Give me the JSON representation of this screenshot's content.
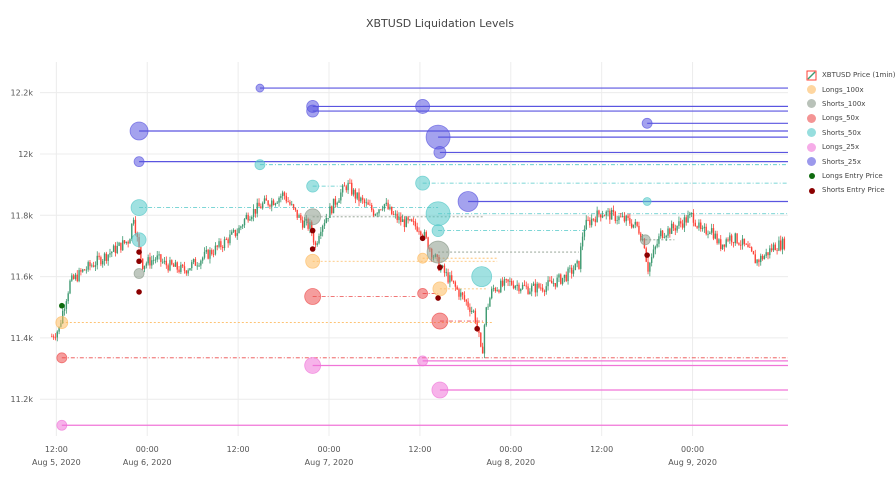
{
  "chart_data": {
    "type": "scatter",
    "title": "XBTUSD Liquidation Levels",
    "xlabel": "",
    "ylabel": "",
    "ylim": [
      11080,
      12300
    ],
    "x_range_hours": [
      -1.8,
      80.5
    ],
    "y_ticks": [
      {
        "value": 11200,
        "label": "11.2k"
      },
      {
        "value": 11400,
        "label": "11.4k"
      },
      {
        "value": 11600,
        "label": "11.6k"
      },
      {
        "value": 11800,
        "label": "11.8k"
      },
      {
        "value": 12000,
        "label": "12k"
      },
      {
        "value": 12200,
        "label": "12.2k"
      }
    ],
    "x_ticks": [
      {
        "hour": 0,
        "time": "12:00",
        "date": "Aug 5, 2020"
      },
      {
        "hour": 10,
        "time": "00:00",
        "date": "Aug 6, 2020"
      },
      {
        "hour": 20,
        "time": "12:00",
        "date": ""
      },
      {
        "hour": 30,
        "time": "00:00",
        "date": "Aug 7, 2020"
      },
      {
        "hour": 40,
        "time": "12:00",
        "date": ""
      },
      {
        "hour": 50,
        "time": "00:00",
        "date": "Aug 8, 2020"
      },
      {
        "hour": 60,
        "time": "12:00",
        "date": ""
      },
      {
        "hour": 70,
        "time": "00:00",
        "date": "Aug 9, 2020"
      }
    ],
    "price_anchors": [
      [
        -0.5,
        11405
      ],
      [
        0.3,
        11430
      ],
      [
        0.8,
        11500
      ],
      [
        1.5,
        11580
      ],
      [
        3,
        11620
      ],
      [
        5,
        11660
      ],
      [
        7,
        11700
      ],
      [
        8,
        11720
      ],
      [
        8.5,
        11800
      ],
      [
        9,
        11700
      ],
      [
        9.5,
        11640
      ],
      [
        11,
        11660
      ],
      [
        12,
        11640
      ],
      [
        14,
        11620
      ],
      [
        16,
        11660
      ],
      [
        18,
        11700
      ],
      [
        20,
        11750
      ],
      [
        21,
        11800
      ],
      [
        22,
        11820
      ],
      [
        23,
        11840
      ],
      [
        24,
        11850
      ],
      [
        25,
        11870
      ],
      [
        26,
        11820
      ],
      [
        27,
        11780
      ],
      [
        28,
        11760
      ],
      [
        28.5,
        11700
      ],
      [
        29,
        11760
      ],
      [
        31,
        11860
      ],
      [
        32,
        11900
      ],
      [
        33,
        11860
      ],
      [
        35,
        11810
      ],
      [
        36,
        11840
      ],
      [
        37,
        11800
      ],
      [
        38,
        11780
      ],
      [
        39,
        11770
      ],
      [
        40,
        11760
      ],
      [
        41,
        11700
      ],
      [
        42,
        11640
      ],
      [
        43,
        11600
      ],
      [
        44,
        11560
      ],
      [
        45,
        11520
      ],
      [
        46,
        11480
      ],
      [
        46.5,
        11400
      ],
      [
        46.8,
        11330
      ],
      [
        47.2,
        11480
      ],
      [
        48,
        11560
      ],
      [
        50,
        11580
      ],
      [
        52,
        11560
      ],
      [
        54,
        11570
      ],
      [
        56,
        11600
      ],
      [
        57.5,
        11640
      ],
      [
        58,
        11760
      ],
      [
        59,
        11790
      ],
      [
        60,
        11810
      ],
      [
        61,
        11800
      ],
      [
        62,
        11790
      ],
      [
        63,
        11780
      ],
      [
        64,
        11760
      ],
      [
        64.8,
        11700
      ],
      [
        65,
        11620
      ],
      [
        65.5,
        11660
      ],
      [
        66.5,
        11740
      ],
      [
        68,
        11760
      ],
      [
        69,
        11780
      ],
      [
        70,
        11800
      ],
      [
        71,
        11740
      ],
      [
        72,
        11760
      ],
      [
        73,
        11700
      ],
      [
        74,
        11730
      ],
      [
        75,
        11720
      ],
      [
        76,
        11690
      ],
      [
        77,
        11650
      ],
      [
        78,
        11670
      ],
      [
        79,
        11700
      ],
      [
        80.2,
        11710
      ]
    ],
    "series": [
      {
        "name": "XBTUSD Price (1min)",
        "kind": "candles",
        "up_color": "#3d9970",
        "down_color": "#ff4136"
      },
      {
        "name": "Longs_100x",
        "color": "#fdbb61",
        "points": [
          {
            "x": 0.6,
            "y": 11450,
            "end": 48.0,
            "size": 6
          },
          {
            "x": 28.2,
            "y": 11650,
            "end": 48.5,
            "size": 7
          },
          {
            "x": 40.3,
            "y": 11660,
            "end": 48.5,
            "size": 5
          },
          {
            "x": 42.2,
            "y": 11560,
            "end": 47.5,
            "size": 7
          }
        ]
      },
      {
        "name": "Shorts_100x",
        "color": "#8a9a8a",
        "points": [
          {
            "x": 9.1,
            "y": 11610,
            "end": 9.1,
            "size": 5
          },
          {
            "x": 28.2,
            "y": 11795,
            "end": 47.0,
            "size": 8
          },
          {
            "x": 42.0,
            "y": 11680,
            "end": 57.5,
            "size": 11
          },
          {
            "x": 64.8,
            "y": 11720,
            "end": 68.0,
            "size": 5
          }
        ]
      },
      {
        "name": "Longs_50x",
        "color": "#ec4c4c",
        "points": [
          {
            "x": 0.6,
            "y": 11335,
            "end": 80.5,
            "size": 5
          },
          {
            "x": 28.2,
            "y": 11535,
            "end": 39.5,
            "size": 8
          },
          {
            "x": 40.3,
            "y": 11545,
            "end": 42.0,
            "size": 5
          },
          {
            "x": 42.2,
            "y": 11455,
            "end": 47.0,
            "size": 8
          }
        ]
      },
      {
        "name": "Shorts_50x",
        "color": "#52c8c8",
        "points": [
          {
            "x": 9.1,
            "y": 11825,
            "end": 42.0,
            "size": 8
          },
          {
            "x": 9.1,
            "y": 11720,
            "end": 9.1,
            "size": 7
          },
          {
            "x": 22.4,
            "y": 11965,
            "end": 80.5,
            "size": 5
          },
          {
            "x": 28.2,
            "y": 11895,
            "end": 31.5,
            "size": 6
          },
          {
            "x": 40.3,
            "y": 11905,
            "end": 80.5,
            "size": 7
          },
          {
            "x": 42.0,
            "y": 11805,
            "end": 80.5,
            "size": 12
          },
          {
            "x": 46.8,
            "y": 11600,
            "end": 46.8,
            "size": 10
          },
          {
            "x": 42.0,
            "y": 11750,
            "end": 58.5,
            "size": 6
          },
          {
            "x": 65.0,
            "y": 11845,
            "end": 80.5,
            "size": 4
          }
        ]
      },
      {
        "name": "Longs_25x",
        "color": "#f075d8",
        "points": [
          {
            "x": 0.6,
            "y": 11115,
            "end": 80.5,
            "size": 5
          },
          {
            "x": 28.2,
            "y": 11310,
            "end": 80.5,
            "size": 8
          },
          {
            "x": 40.3,
            "y": 11325,
            "end": 80.5,
            "size": 5
          },
          {
            "x": 42.2,
            "y": 11230,
            "end": 80.5,
            "size": 8
          }
        ]
      },
      {
        "name": "Shorts_25x",
        "color": "#5a55e0",
        "points": [
          {
            "x": 9.1,
            "y": 12075,
            "end": 80.5,
            "size": 9
          },
          {
            "x": 9.1,
            "y": 11975,
            "end": 80.5,
            "size": 5
          },
          {
            "x": 22.4,
            "y": 12215,
            "end": 80.5,
            "size": 4
          },
          {
            "x": 28.2,
            "y": 12155,
            "end": 80.5,
            "size": 6
          },
          {
            "x": 28.2,
            "y": 12140,
            "end": 80.5,
            "size": 6
          },
          {
            "x": 40.3,
            "y": 12155,
            "end": 80.5,
            "size": 7
          },
          {
            "x": 42.0,
            "y": 12055,
            "end": 80.5,
            "size": 12
          },
          {
            "x": 42.2,
            "y": 12005,
            "end": 80.5,
            "size": 6
          },
          {
            "x": 45.3,
            "y": 11845,
            "end": 80.5,
            "size": 10
          },
          {
            "x": 65.0,
            "y": 12100,
            "end": 80.5,
            "size": 5
          }
        ]
      },
      {
        "name": "Longs Entry Price",
        "color": "#0e6b0e",
        "points": [
          {
            "x": 0.6,
            "y": 11505
          }
        ]
      },
      {
        "name": "Shorts Entry Price",
        "color": "#8b0000",
        "points": [
          {
            "x": 9.1,
            "y": 11550
          },
          {
            "x": 9.1,
            "y": 11650
          },
          {
            "x": 9.1,
            "y": 11680
          },
          {
            "x": 28.2,
            "y": 11750
          },
          {
            "x": 28.2,
            "y": 11690
          },
          {
            "x": 40.3,
            "y": 11725
          },
          {
            "x": 42.0,
            "y": 11530
          },
          {
            "x": 42.2,
            "y": 11630
          },
          {
            "x": 46.3,
            "y": 11430
          },
          {
            "x": 65.0,
            "y": 11670
          }
        ]
      }
    ]
  }
}
